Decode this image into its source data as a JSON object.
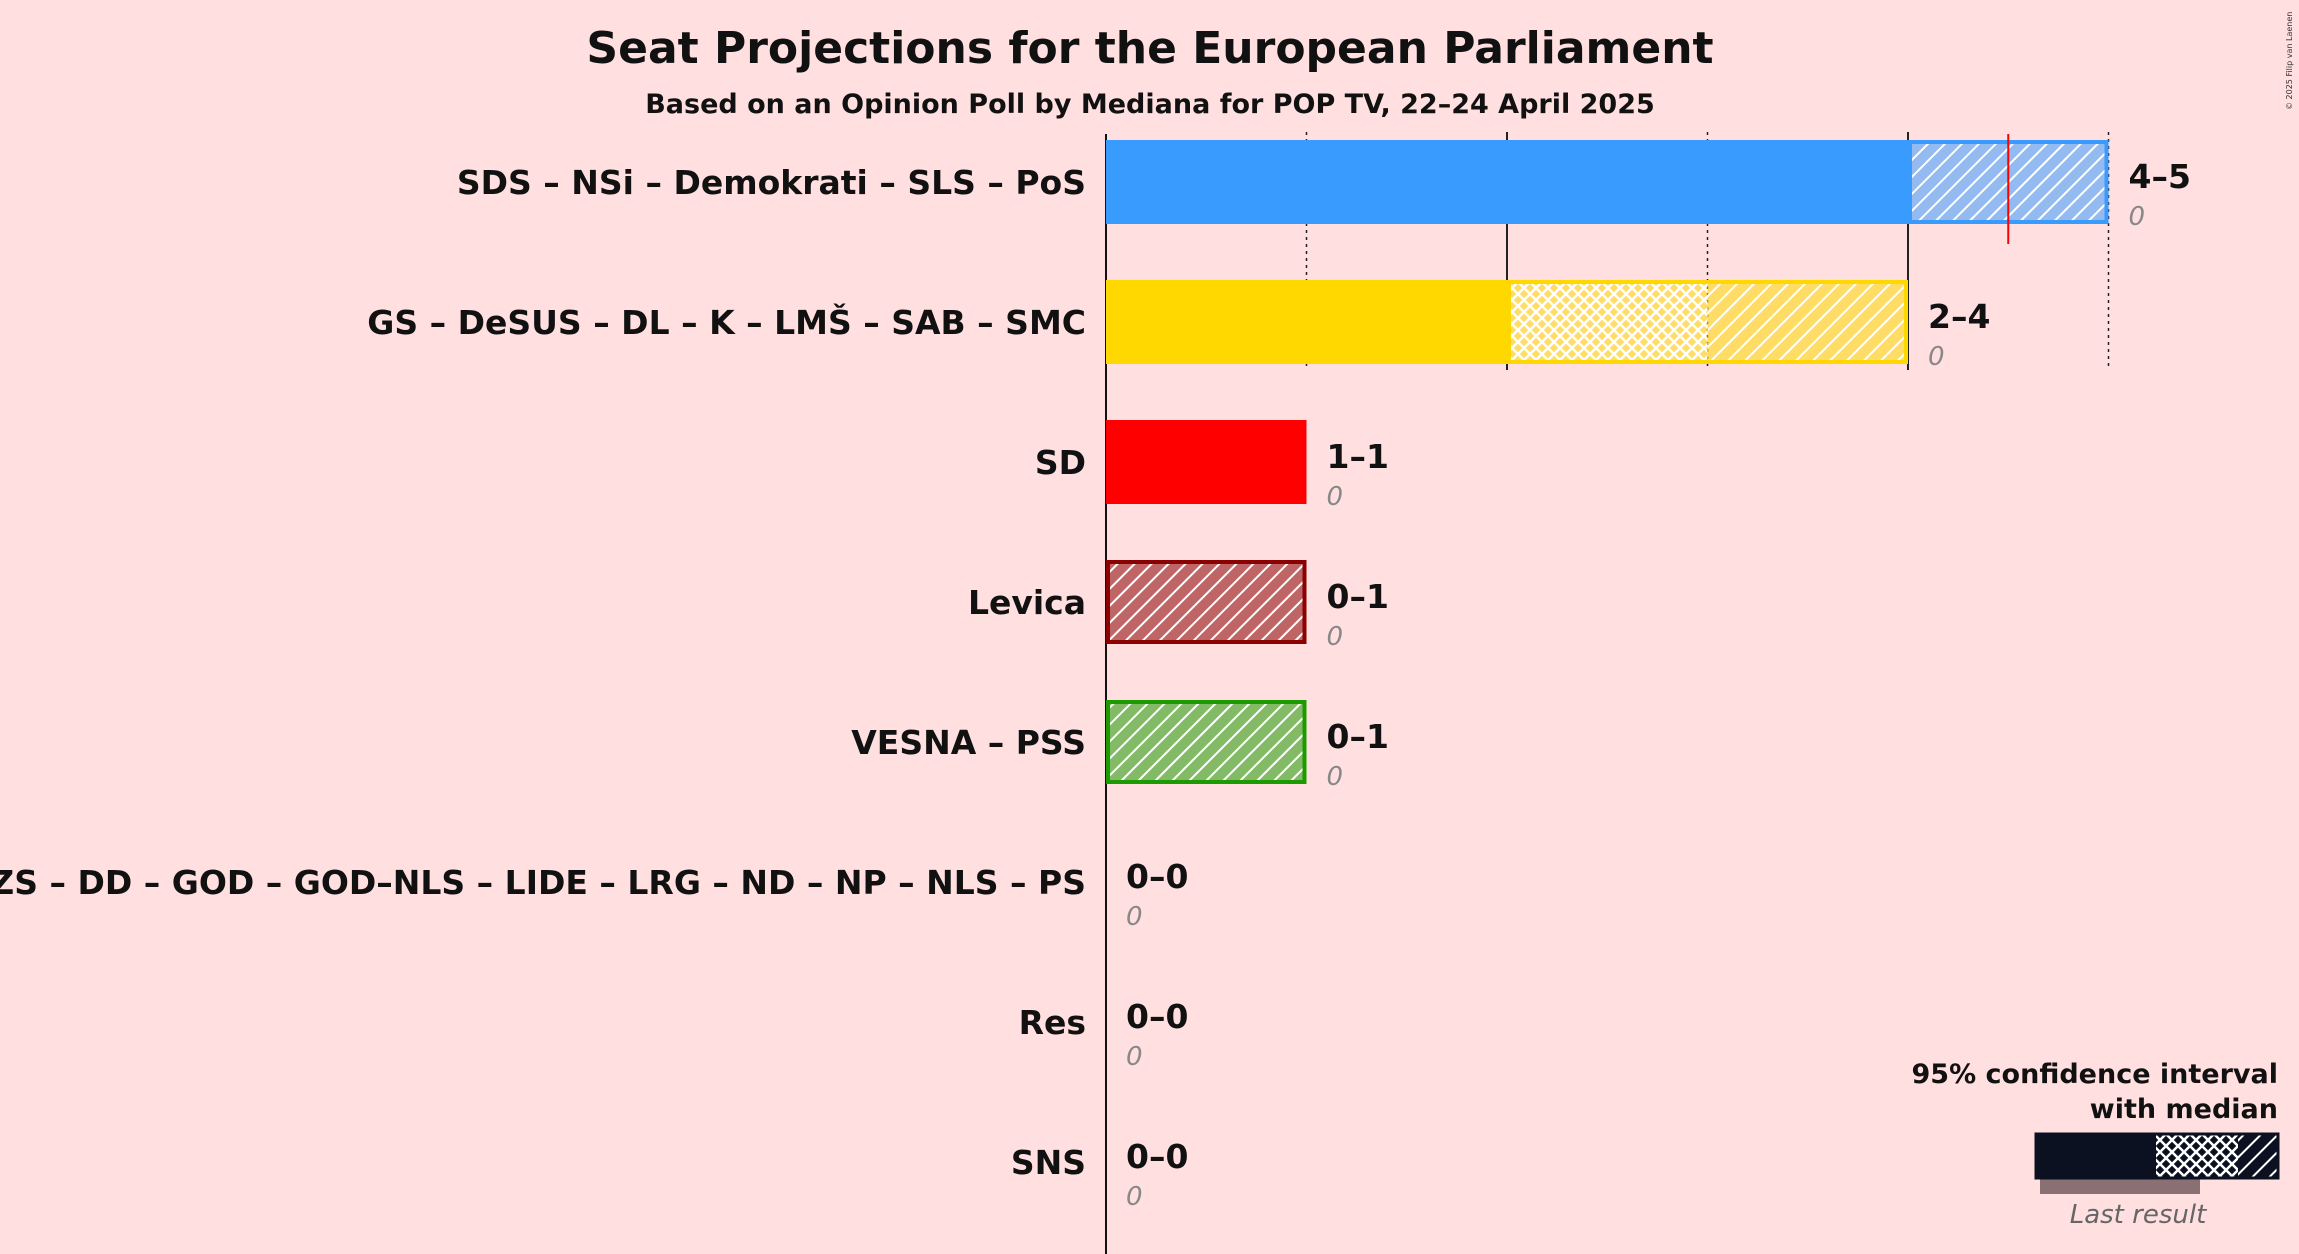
{
  "chart_data": {
    "type": "bar",
    "title": "Seat Projections for the European Parliament",
    "subtitle": "Based on an Opinion Poll by Mediana for POP TV, 22–24 April 2025",
    "copyright": "© 2025 Filip van Laenen",
    "xlim": [
      0,
      5
    ],
    "legend": {
      "line1": "95% confidence interval",
      "line2": "with median",
      "last_result": "Last result",
      "position": "bottom-right"
    },
    "categories": [
      "SDS – NSi – Demokrati – SLS – PoS",
      "GS – DeSUS – DL – K – LMŠ – SAB – SMC",
      "SD",
      "Levica",
      "VESNA – PSS",
      "ZS – DD – GOD – GOD–NLS – LIDE – LRG – ND – NP – NLS – PS",
      "Res",
      "SNS"
    ],
    "series": [
      {
        "low": [
          4,
          2,
          1,
          0,
          0,
          0,
          0,
          0
        ],
        "median": [
          4,
          3,
          1,
          0,
          0,
          0,
          0,
          0
        ],
        "high": [
          5,
          4,
          1,
          1,
          1,
          0,
          0,
          0
        ],
        "last_result": [
          0,
          0,
          0,
          0,
          0,
          0,
          0,
          0
        ]
      }
    ],
    "range_labels": [
      "4–5",
      "2–4",
      "1–1",
      "0–1",
      "0–1",
      "0–0",
      "0–0",
      "0–0"
    ],
    "last_labels": [
      "0",
      "0",
      "0",
      "0",
      "0",
      "0",
      "0",
      "0"
    ],
    "colors": [
      "#3a9bff",
      "#ffd800",
      "#ff0000",
      "#8b0000",
      "#1c9b00",
      "#888888",
      "#888888",
      "#888888"
    ],
    "majority_marker": 4.5,
    "majority_color": "#ff0000"
  }
}
